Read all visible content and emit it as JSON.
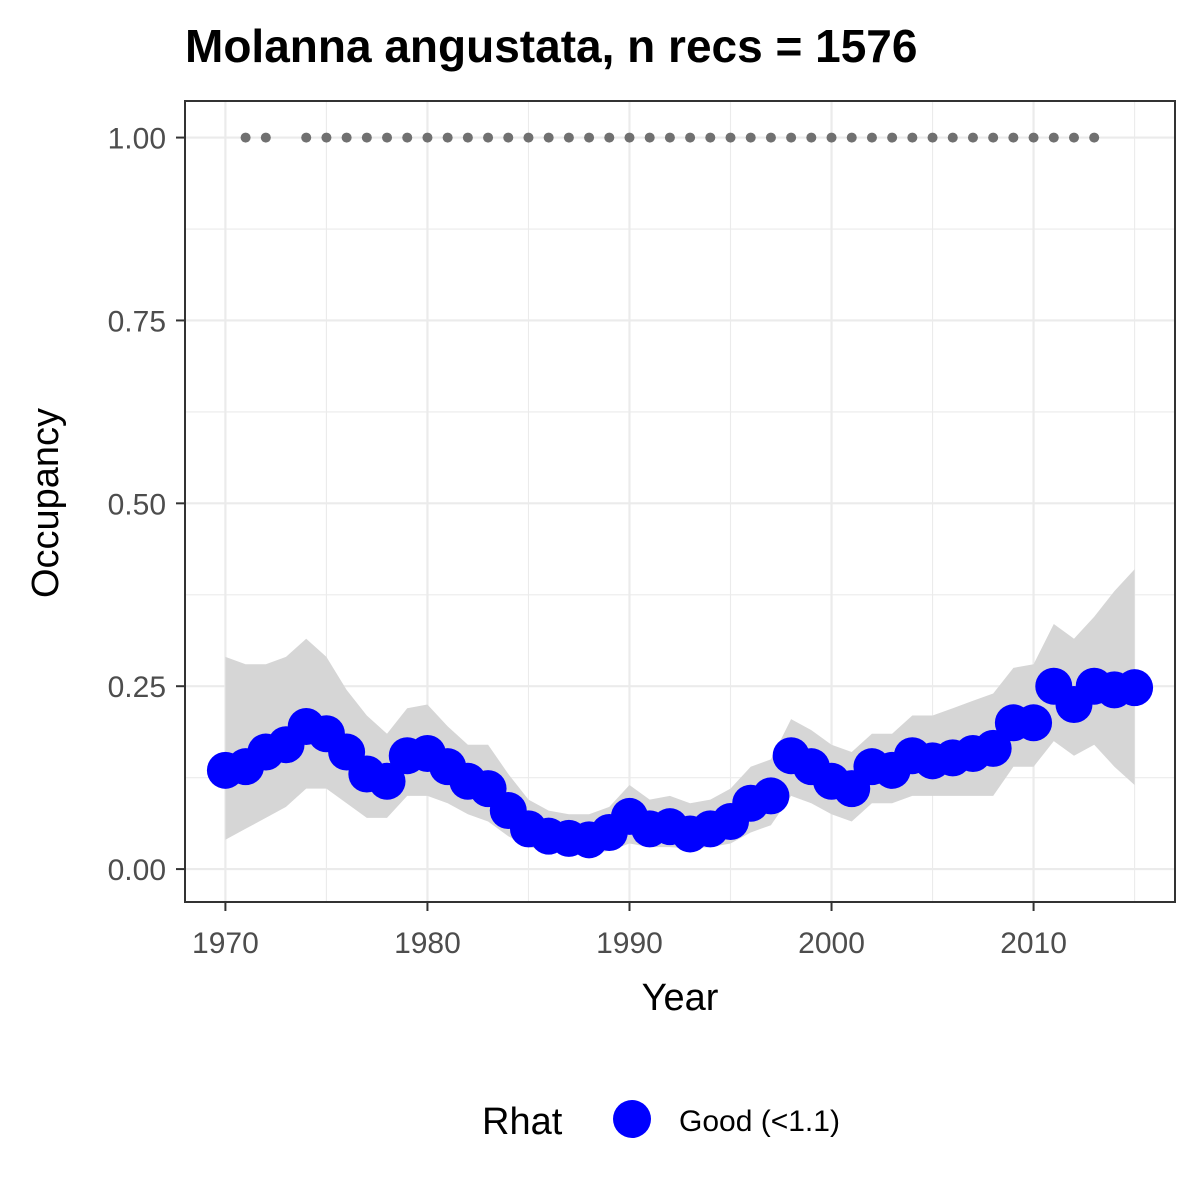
{
  "chart_data": {
    "type": "line",
    "title": "Molanna angustata, n recs = 1576",
    "xlabel": "Year",
    "ylabel": "Occupancy",
    "xlim": [
      1968,
      2017
    ],
    "ylim": [
      -0.045,
      1.05
    ],
    "x_ticks": [
      1970,
      1980,
      1990,
      2000,
      2010
    ],
    "x_tick_labels": [
      "1970",
      "1980",
      "1990",
      "2000",
      "2010"
    ],
    "y_ticks": [
      0,
      0.25,
      0.5,
      0.75,
      1.0
    ],
    "y_tick_labels": [
      "0.00",
      "0.25",
      "0.50",
      "0.75",
      "1.00"
    ],
    "grid": true,
    "legend": {
      "title": "Rhat",
      "position": "bottom",
      "entries": [
        {
          "label": "Good (<1.1)",
          "color": "#0000ff"
        }
      ]
    },
    "colors": {
      "points": "#0000ff",
      "ribbon": "#d6d6d6",
      "record_dots": "#707070",
      "grid": "#ebebeb",
      "panel_border": "#333333"
    },
    "series": [
      {
        "type": "points",
        "x": [
          1970,
          1971,
          1972,
          1973,
          1974,
          1975,
          1976,
          1977,
          1978,
          1979,
          1980,
          1981,
          1982,
          1983,
          1984,
          1985,
          1986,
          1987,
          1988,
          1989,
          1990,
          1991,
          1992,
          1993,
          1994,
          1995,
          1996,
          1997,
          1998,
          1999,
          2000,
          2001,
          2002,
          2003,
          2004,
          2005,
          2006,
          2007,
          2008,
          2009,
          2010,
          2011,
          2012,
          2013,
          2014,
          2015
        ],
        "y": [
          0.135,
          0.14,
          0.16,
          0.17,
          0.195,
          0.185,
          0.16,
          0.13,
          0.12,
          0.155,
          0.158,
          0.14,
          0.12,
          0.11,
          0.08,
          0.055,
          0.045,
          0.042,
          0.04,
          0.05,
          0.072,
          0.055,
          0.058,
          0.048,
          0.055,
          0.065,
          0.09,
          0.1,
          0.155,
          0.14,
          0.12,
          0.11,
          0.14,
          0.135,
          0.155,
          0.148,
          0.152,
          0.158,
          0.165,
          0.2,
          0.2,
          0.25,
          0.225,
          0.25,
          0.245,
          0.248
        ]
      },
      {
        "type": "ribbon",
        "x": [
          1970,
          1971,
          1972,
          1973,
          1974,
          1975,
          1976,
          1977,
          1978,
          1979,
          1980,
          1981,
          1982,
          1983,
          1984,
          1985,
          1986,
          1987,
          1988,
          1989,
          1990,
          1991,
          1992,
          1993,
          1994,
          1995,
          1996,
          1997,
          1998,
          1999,
          2000,
          2001,
          2002,
          2003,
          2004,
          2005,
          2006,
          2007,
          2008,
          2009,
          2010,
          2011,
          2012,
          2013,
          2014,
          2015
        ],
        "lower": [
          0.04,
          0.055,
          0.07,
          0.085,
          0.11,
          0.11,
          0.09,
          0.07,
          0.07,
          0.1,
          0.1,
          0.09,
          0.075,
          0.065,
          0.045,
          0.03,
          0.025,
          0.025,
          0.02,
          0.025,
          0.035,
          0.03,
          0.03,
          0.028,
          0.03,
          0.035,
          0.05,
          0.06,
          0.1,
          0.09,
          0.075,
          0.065,
          0.09,
          0.09,
          0.1,
          0.1,
          0.1,
          0.1,
          0.1,
          0.14,
          0.14,
          0.175,
          0.155,
          0.17,
          0.14,
          0.115
        ],
        "upper": [
          0.29,
          0.28,
          0.28,
          0.29,
          0.315,
          0.29,
          0.245,
          0.21,
          0.185,
          0.22,
          0.225,
          0.195,
          0.17,
          0.17,
          0.13,
          0.095,
          0.08,
          0.075,
          0.075,
          0.085,
          0.115,
          0.095,
          0.1,
          0.09,
          0.095,
          0.11,
          0.14,
          0.15,
          0.205,
          0.19,
          0.17,
          0.16,
          0.185,
          0.185,
          0.21,
          0.21,
          0.22,
          0.23,
          0.24,
          0.275,
          0.28,
          0.335,
          0.315,
          0.345,
          0.38,
          0.41
        ]
      },
      {
        "type": "record-dots",
        "y": 1.0,
        "x": [
          1971,
          1972,
          1974,
          1975,
          1976,
          1977,
          1978,
          1979,
          1980,
          1981,
          1982,
          1983,
          1984,
          1985,
          1986,
          1987,
          1988,
          1989,
          1990,
          1991,
          1992,
          1993,
          1994,
          1995,
          1996,
          1997,
          1998,
          1999,
          2000,
          2001,
          2002,
          2003,
          2004,
          2005,
          2006,
          2007,
          2008,
          2009,
          2010,
          2011,
          2012,
          2013
        ]
      }
    ]
  }
}
